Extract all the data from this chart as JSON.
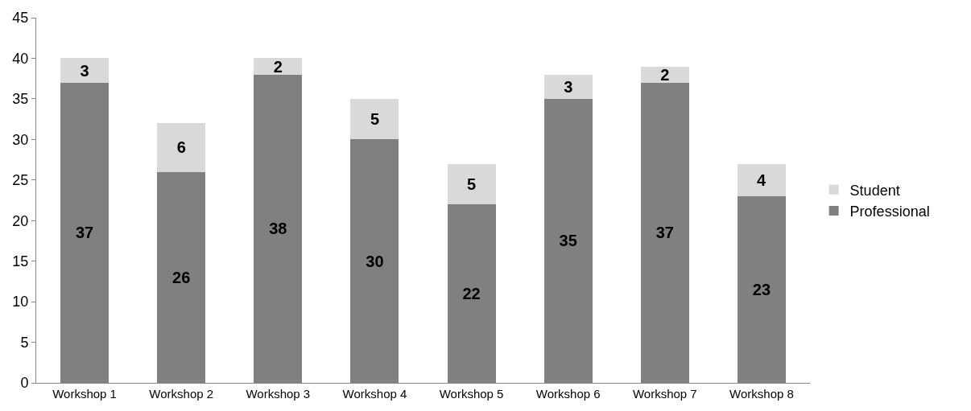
{
  "chart_data": {
    "type": "bar",
    "stacked": true,
    "categories": [
      "Workshop 1",
      "Workshop 2",
      "Workshop 3",
      "Workshop 4",
      "Workshop 5",
      "Workshop 6",
      "Workshop 7",
      "Workshop 8"
    ],
    "series": [
      {
        "name": "Professional",
        "color": "#808080",
        "values": [
          37,
          26,
          38,
          30,
          22,
          35,
          37,
          23
        ]
      },
      {
        "name": "Student",
        "color": "#d9d9d9",
        "values": [
          3,
          6,
          2,
          5,
          5,
          3,
          2,
          4
        ]
      }
    ],
    "ylim": [
      0,
      45
    ],
    "yticks": [
      0,
      5,
      10,
      15,
      20,
      25,
      30,
      35,
      40,
      45
    ],
    "data_labels": true,
    "legend": "right"
  }
}
